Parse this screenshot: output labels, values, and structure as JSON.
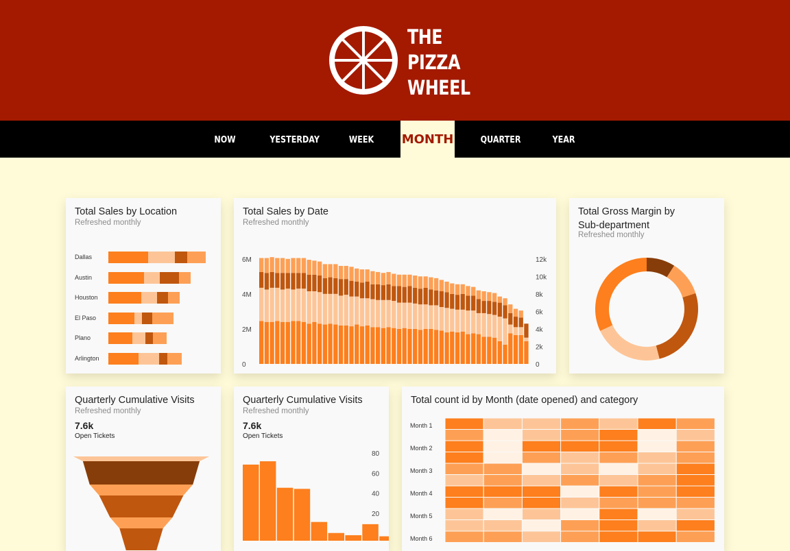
{
  "brand": {
    "lines": [
      "THE",
      "PIZZA",
      "WHEEL"
    ]
  },
  "nav": {
    "tabs": [
      {
        "label": "NOW",
        "active": false
      },
      {
        "label": "YESTERDAY",
        "active": false
      },
      {
        "label": "WEEK",
        "active": false
      },
      {
        "label": "MONTH",
        "active": true
      },
      {
        "label": "QUARTER",
        "active": false
      },
      {
        "label": "YEAR",
        "active": false
      }
    ]
  },
  "colors": {
    "header": "#a31a00",
    "background": "#fffbd9",
    "orange": "#fd7f1d",
    "light": "#fdc597",
    "dark": "#c0570e",
    "mid": "#fda055",
    "darkest": "#873d09"
  },
  "cards": {
    "location": {
      "title": "Total Sales by Location",
      "subtitle": "Refreshed monthly"
    },
    "by_date": {
      "title": "Total Sales by Date",
      "subtitle": "Refreshed monthly"
    },
    "margin": {
      "title_line1": "Total Gross Margin by",
      "title_line2": "Sub-department",
      "subtitle": "Refreshed monthly"
    },
    "funnel": {
      "title": "Quarterly Cumulative Visits",
      "subtitle": "Refreshed monthly",
      "value": "7.6k",
      "value_label": "Open Tickets"
    },
    "visits_bar": {
      "title": "Quarterly Cumulative Visits",
      "subtitle": "Refreshed monthly",
      "value": "7.6k",
      "value_label": "Open Tickets"
    },
    "heatmap": {
      "title": "Total count id by Month (date opened) and category"
    }
  },
  "chart_data": [
    {
      "type": "bar",
      "orientation": "horizontal-stacked",
      "categories": [
        "Dallas",
        "Austin",
        "Houston",
        "El Paso",
        "Plano",
        "Arlington"
      ],
      "series": [
        {
          "values": [
            58,
            52,
            48,
            38,
            35,
            44
          ]
        },
        {
          "values": [
            39,
            23,
            23,
            11,
            19,
            30
          ]
        },
        {
          "values": [
            18,
            28,
            16,
            15,
            11,
            12
          ]
        },
        {
          "values": [
            27,
            17,
            17,
            31,
            20,
            21
          ]
        }
      ]
    },
    {
      "type": "bar",
      "stacked": true,
      "y_left_ticks": [
        "0",
        "2M",
        "4M",
        "6M"
      ],
      "y_left_range": [
        0,
        6500000
      ],
      "y_right_ticks": [
        "0",
        "2k",
        "4k",
        "6k",
        "8k",
        "10k",
        "12k"
      ],
      "y_right_range": [
        0,
        13000
      ],
      "series": [
        {
          "values": [
            2.45,
            2.4,
            2.4,
            2.45,
            2.4,
            2.4,
            2.45,
            2.45,
            2.4,
            2.3,
            2.4,
            2.3,
            2.25,
            2.3,
            2.25,
            2.2,
            2.2,
            2.15,
            2.25,
            2.15,
            2.2,
            2.1,
            2.1,
            2.05,
            2.1,
            2.05,
            2.0,
            2.05,
            2.0,
            2.0,
            1.95,
            2.0,
            2.0,
            1.95,
            1.9,
            1.8,
            1.85,
            1.8,
            1.85,
            1.7,
            1.75,
            1.7,
            1.55,
            1.55,
            1.5,
            1.3,
            1.1,
            1.75,
            1.65,
            1.65,
            1.3
          ]
        },
        {
          "values": [
            1.9,
            1.85,
            1.95,
            1.9,
            1.85,
            1.9,
            1.8,
            1.85,
            1.9,
            1.85,
            1.75,
            1.8,
            1.75,
            1.7,
            1.75,
            1.7,
            1.75,
            1.7,
            1.6,
            1.6,
            1.55,
            1.6,
            1.55,
            1.6,
            1.55,
            1.55,
            1.5,
            1.45,
            1.5,
            1.45,
            1.45,
            1.4,
            1.35,
            1.4,
            1.35,
            1.4,
            1.3,
            1.3,
            1.25,
            1.35,
            1.3,
            1.2,
            1.35,
            1.3,
            1.3,
            1.4,
            1.5,
            0.5,
            0.45,
            0.45,
            0.2
          ]
        },
        {
          "values": [
            0.9,
            0.95,
            0.9,
            0.85,
            0.95,
            0.9,
            0.95,
            0.9,
            0.9,
            0.95,
            0.95,
            0.95,
            0.9,
            0.95,
            0.9,
            0.95,
            0.9,
            0.9,
            0.85,
            0.9,
            0.95,
            0.85,
            0.9,
            0.85,
            0.9,
            0.85,
            0.95,
            0.9,
            0.95,
            0.9,
            0.9,
            0.95,
            0.9,
            0.85,
            0.9,
            0.9,
            0.85,
            0.85,
            0.9,
            0.85,
            0.85,
            0.8,
            0.7,
            0.75,
            0.75,
            0.8,
            0.75,
            0.65,
            0.6,
            0.55,
            0.8
          ]
        },
        {
          "values": [
            0.8,
            0.85,
            0.85,
            0.85,
            0.85,
            0.8,
            0.85,
            0.85,
            0.85,
            0.85,
            0.8,
            0.8,
            0.8,
            0.75,
            0.8,
            0.75,
            0.75,
            0.8,
            0.75,
            0.75,
            0.7,
            0.75,
            0.7,
            0.7,
            0.7,
            0.7,
            0.65,
            0.7,
            0.65,
            0.7,
            0.7,
            0.65,
            0.7,
            0.7,
            0.65,
            0.6,
            0.6,
            0.6,
            0.55,
            0.55,
            0.5,
            0.5,
            0.55,
            0.5,
            0.5,
            0.35,
            0.4,
            0.5,
            0.45,
            0.4,
            0.0
          ]
        }
      ]
    },
    {
      "type": "pie",
      "donut": true,
      "values": [
        9,
        11,
        26,
        22,
        32
      ]
    },
    {
      "type": "bar",
      "shape": "funnel",
      "values": [
        100,
        86,
        76,
        62,
        46,
        32
      ]
    },
    {
      "type": "bar",
      "y_ticks": [
        "20",
        "40",
        "60",
        "80"
      ],
      "y_range": [
        0,
        100
      ],
      "values": [
        69,
        72,
        48,
        47,
        17,
        7,
        5,
        15,
        4
      ]
    },
    {
      "type": "heatmap",
      "rows": [
        "Month 1",
        "Month 2",
        "Month 3",
        "Month 4",
        "Month 5",
        "Month 6"
      ],
      "columns": 7,
      "values": [
        [
          4,
          2,
          2,
          3,
          2,
          4,
          3
        ],
        [
          3,
          1,
          2,
          3,
          4,
          1,
          2
        ],
        [
          4,
          1,
          4,
          4,
          4,
          1,
          3
        ],
        [
          4,
          1,
          3,
          2,
          3,
          2,
          3
        ],
        [
          3,
          3,
          1,
          2,
          1,
          2,
          4
        ],
        [
          2,
          3,
          2,
          3,
          2,
          3,
          4
        ],
        [
          4,
          4,
          4,
          1,
          4,
          3,
          4
        ],
        [
          4,
          3,
          4,
          2,
          3,
          3,
          3
        ],
        [
          2,
          1,
          2,
          1,
          4,
          1,
          2
        ],
        [
          2,
          2,
          1,
          3,
          4,
          2,
          4
        ],
        [
          3,
          3,
          2,
          3,
          4,
          4,
          3
        ]
      ]
    }
  ]
}
